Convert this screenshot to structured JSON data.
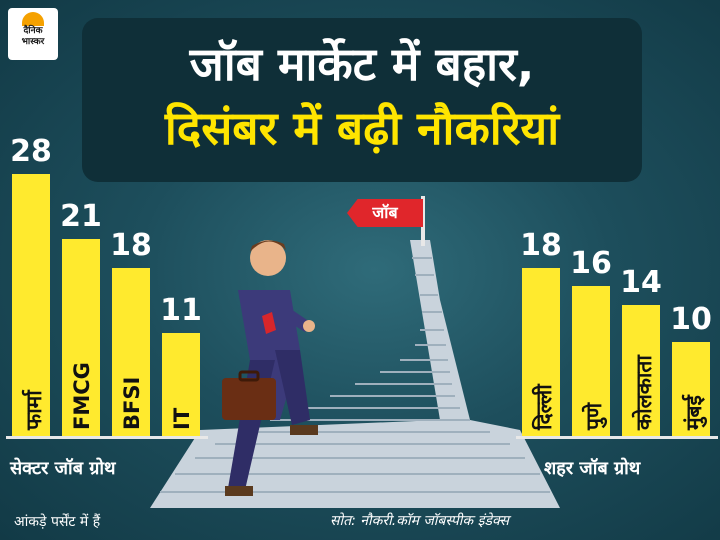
{
  "brand": {
    "logo_text": "दैनिक\nभास्कर",
    "logo_color": "#f5a100"
  },
  "header": {
    "title_line1": "जॉब मार्केट में बहार,",
    "title_line2": "दिसंबर में बढ़ी नौकरियां"
  },
  "flag_label": "जॉब",
  "chart_data": [
    {
      "type": "bar",
      "title": "",
      "group_label": "सेक्टर जॉब ग्रोथ",
      "categories": [
        "फार्मा",
        "FMCG",
        "BFSI",
        "IT"
      ],
      "values": [
        28,
        21,
        18,
        11
      ],
      "unit": "%",
      "color": "#ffea2e"
    },
    {
      "type": "bar",
      "title": "",
      "group_label": "शहर जॉब ग्रोथ",
      "categories": [
        "दिल्ली",
        "पुणे",
        "कोलकाता",
        "मुंबई"
      ],
      "values": [
        18,
        16,
        14,
        10
      ],
      "unit": "%",
      "color": "#ffea2e"
    }
  ],
  "footer": {
    "note": "आंकड़े पर्सेंट में हैं",
    "source": "सोत: नौकरी.कॉम जॉबस्पीक इंडेक्स"
  }
}
